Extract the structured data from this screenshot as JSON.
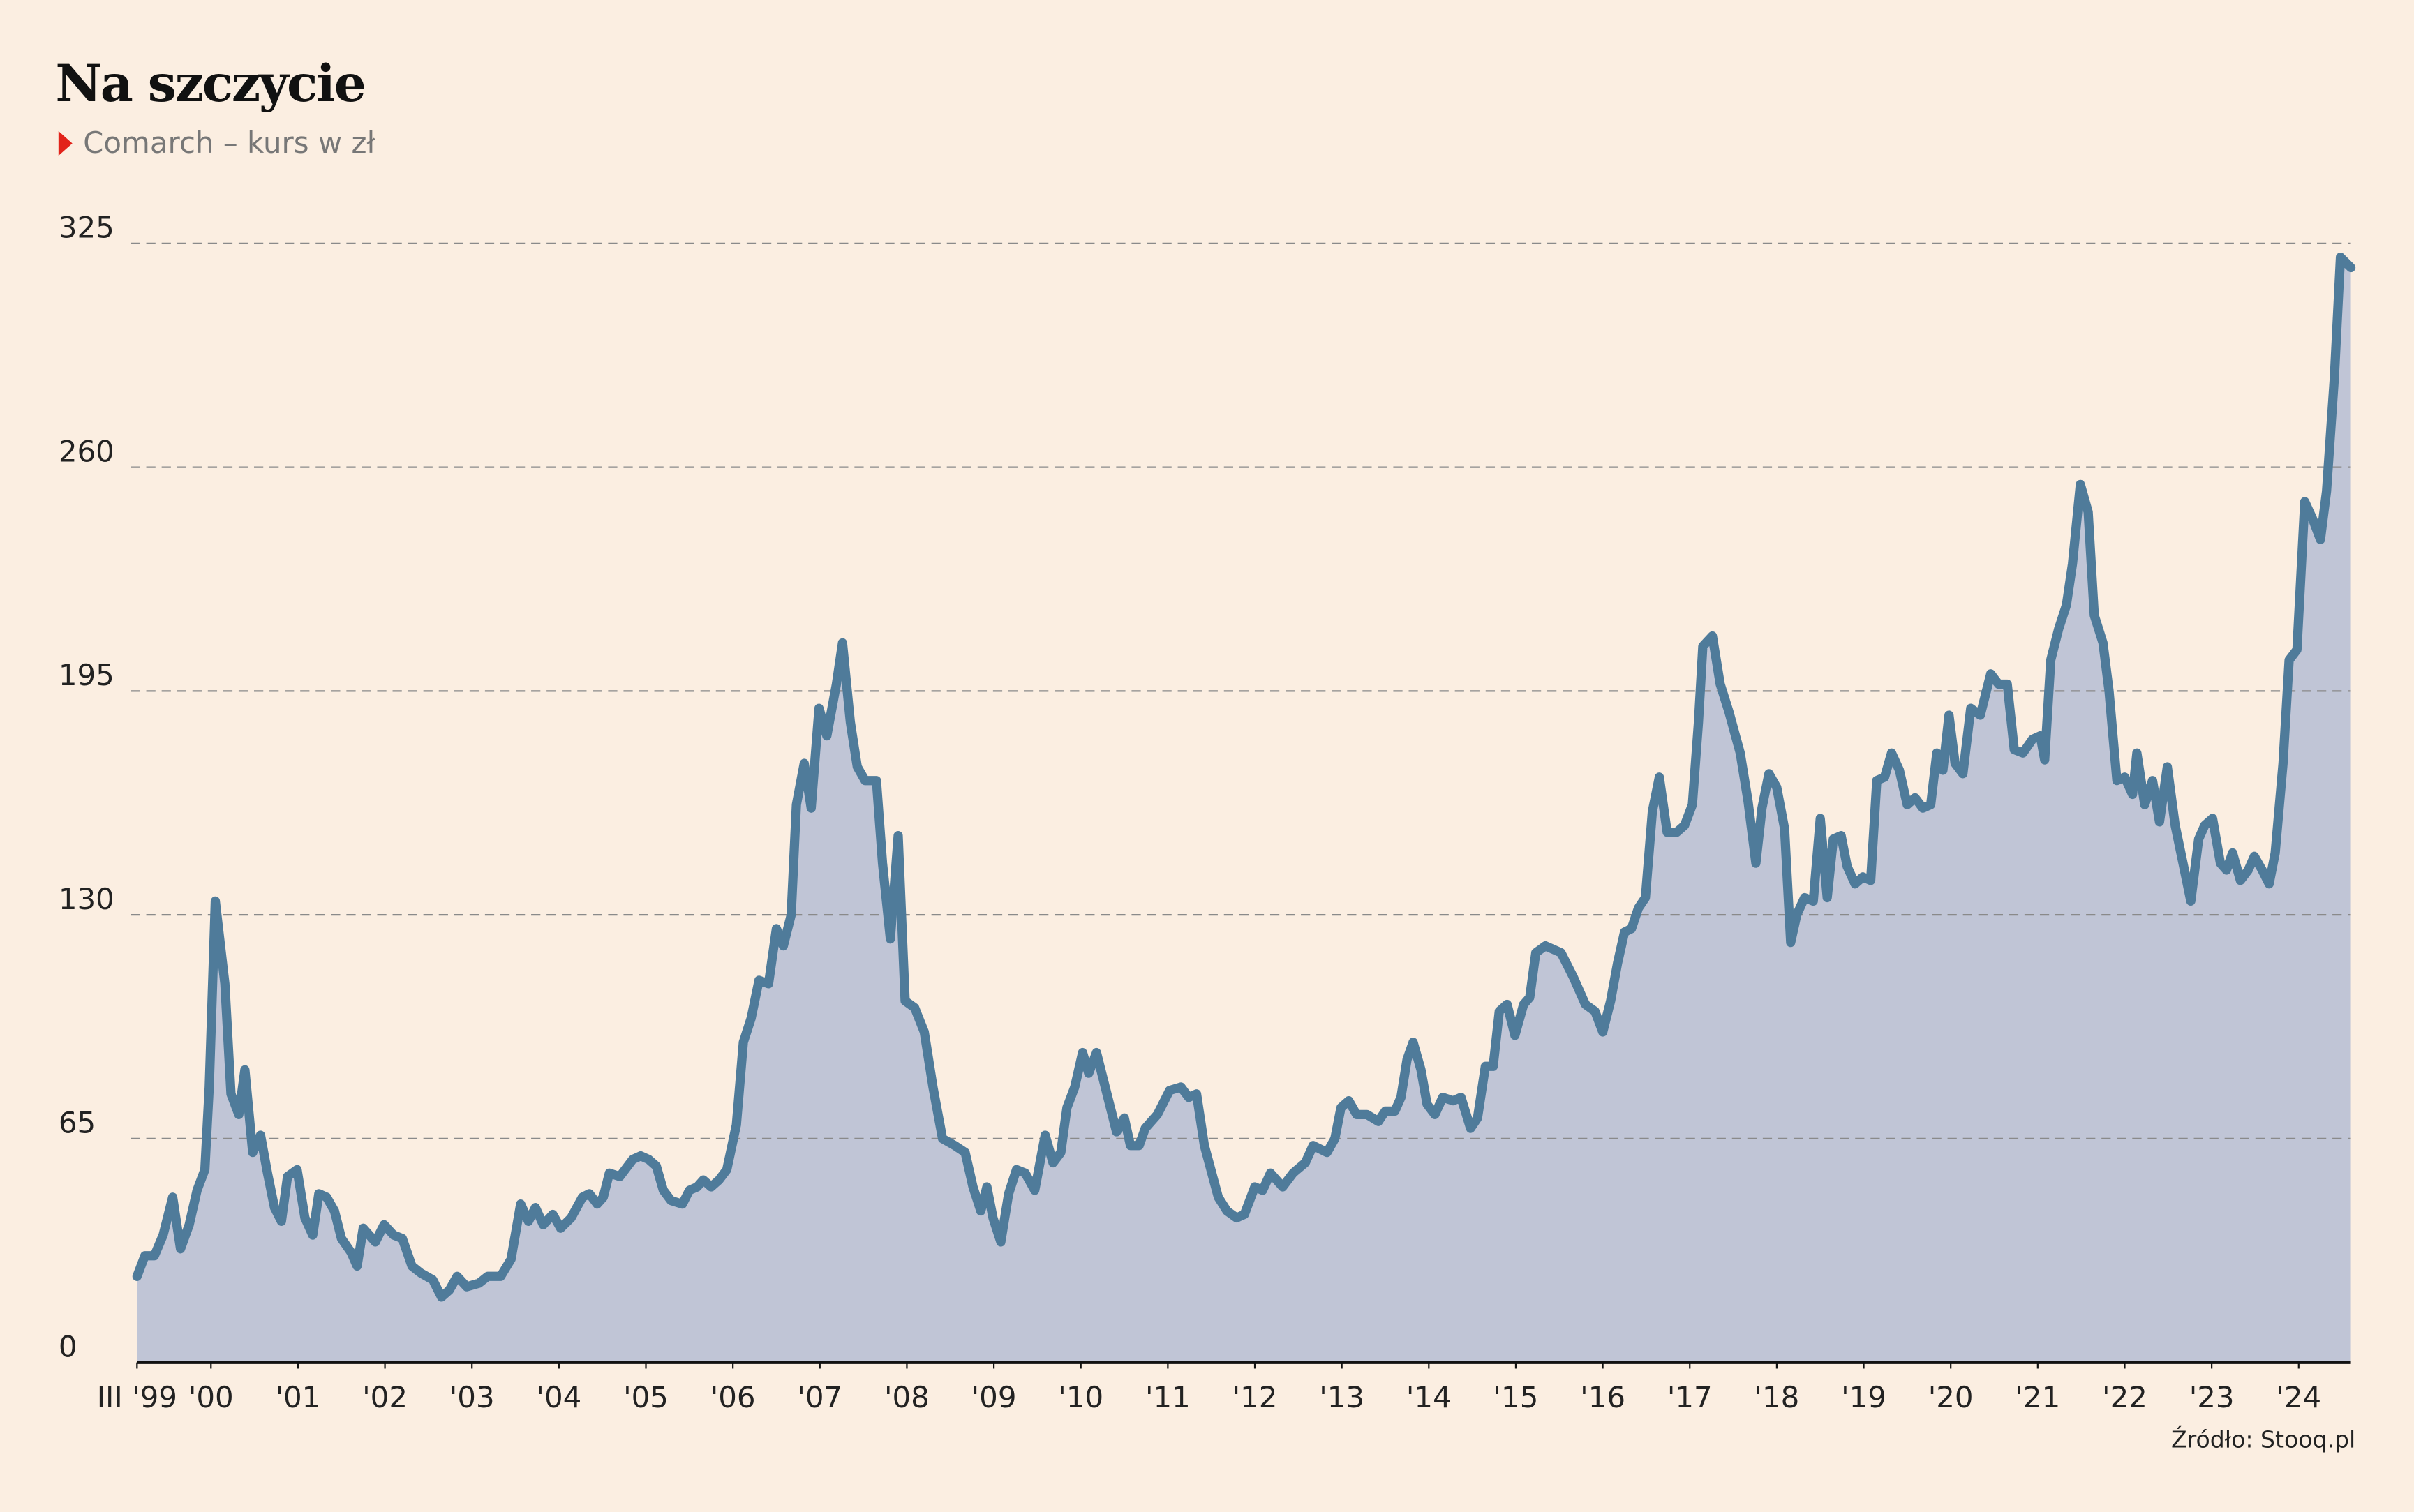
{
  "chart_data": {
    "type": "area",
    "title": "Na szczycie",
    "subtitle": "Comarch – kurs w zł",
    "source": "Źródło: Stooq.pl",
    "color": "#4f7b9a",
    "fill_color": "#c0c5d6",
    "grid": true,
    "xlim": [
      1999.15,
      2024.6
    ],
    "ylim": [
      0,
      325
    ],
    "yticks": [
      0,
      65,
      130,
      195,
      260,
      325
    ],
    "xticks": [
      {
        "value": 1999.15,
        "label": "III '99"
      },
      {
        "value": 2000,
        "label": "'00"
      },
      {
        "value": 2001,
        "label": "'01"
      },
      {
        "value": 2002,
        "label": "'02"
      },
      {
        "value": 2003,
        "label": "'03"
      },
      {
        "value": 2004,
        "label": "'04"
      },
      {
        "value": 2005,
        "label": "'05"
      },
      {
        "value": 2006,
        "label": "'06"
      },
      {
        "value": 2007,
        "label": "'07"
      },
      {
        "value": 2008,
        "label": "'08"
      },
      {
        "value": 2009,
        "label": "'09"
      },
      {
        "value": 2010,
        "label": "'10"
      },
      {
        "value": 2011,
        "label": "'11"
      },
      {
        "value": 2012,
        "label": "'12"
      },
      {
        "value": 2013,
        "label": "'13"
      },
      {
        "value": 2014,
        "label": "'14"
      },
      {
        "value": 2015,
        "label": "'15"
      },
      {
        "value": 2016,
        "label": "'16"
      },
      {
        "value": 2017,
        "label": "'17"
      },
      {
        "value": 2018,
        "label": "'18"
      },
      {
        "value": 2019,
        "label": "'19"
      },
      {
        "value": 2020,
        "label": "'20"
      },
      {
        "value": 2021,
        "label": "'21"
      },
      {
        "value": 2022,
        "label": "'22"
      },
      {
        "value": 2023,
        "label": "'23"
      },
      {
        "value": 2024,
        "label": "'24"
      }
    ],
    "x": [
      1999.15,
      1999.24,
      1999.35,
      1999.45,
      1999.56,
      1999.65,
      1999.75,
      1999.84,
      1999.93,
      1999.98,
      2000.05,
      2000.16,
      2000.23,
      2000.32,
      2000.39,
      2000.48,
      2000.57,
      2000.65,
      2000.73,
      2000.81,
      2000.88,
      2000.99,
      2001.08,
      2001.17,
      2001.24,
      2001.33,
      2001.42,
      2001.5,
      2001.61,
      2001.68,
      2001.75,
      2001.89,
      2001.99,
      2002.1,
      2002.2,
      2002.31,
      2002.41,
      2002.55,
      2002.65,
      2002.74,
      2002.83,
      2002.94,
      2003.08,
      2003.18,
      2003.33,
      2003.45,
      2003.56,
      2003.65,
      2003.73,
      2003.82,
      2003.93,
      2004.02,
      2004.14,
      2004.27,
      2004.35,
      2004.44,
      2004.51,
      2004.58,
      2004.7,
      2004.85,
      2004.94,
      2005.03,
      2005.12,
      2005.2,
      2005.29,
      2005.42,
      2005.5,
      2005.59,
      2005.66,
      2005.75,
      2005.84,
      2005.93,
      2006.04,
      2006.12,
      2006.21,
      2006.3,
      2006.41,
      2006.5,
      2006.58,
      2006.67,
      2006.73,
      2006.82,
      2006.9,
      2006.99,
      2007.08,
      2007.19,
      2007.26,
      2007.35,
      2007.43,
      2007.52,
      2007.65,
      2007.72,
      2007.81,
      2007.9,
      2007.98,
      2008.09,
      2008.2,
      2008.3,
      2008.41,
      2008.55,
      2008.67,
      2008.76,
      2008.85,
      2008.92,
      2008.99,
      2009.08,
      2009.17,
      2009.26,
      2009.36,
      2009.47,
      2009.59,
      2009.68,
      2009.77,
      2009.84,
      2009.93,
      2010.02,
      2010.09,
      2010.18,
      2010.28,
      2010.41,
      2010.5,
      2010.57,
      2010.67,
      2010.74,
      2010.88,
      2011.02,
      2011.15,
      2011.24,
      2011.33,
      2011.42,
      2011.58,
      2011.68,
      2011.79,
      2011.88,
      2012.0,
      2012.09,
      2012.18,
      2012.32,
      2012.44,
      2012.58,
      2012.67,
      2012.83,
      2012.92,
      2012.99,
      2013.08,
      2013.17,
      2013.29,
      2013.42,
      2013.5,
      2013.61,
      2013.68,
      2013.75,
      2013.82,
      2013.91,
      2013.98,
      2014.07,
      2014.16,
      2014.28,
      2014.37,
      2014.48,
      2014.56,
      2014.65,
      2014.74,
      2014.81,
      2014.9,
      2014.99,
      2015.09,
      2015.16,
      2015.23,
      2015.34,
      2015.52,
      2015.66,
      2015.8,
      2015.91,
      2016.0,
      2016.09,
      2016.17,
      2016.25,
      2016.33,
      2016.41,
      2016.49,
      2016.57,
      2016.65,
      2016.74,
      2016.85,
      2016.94,
      2017.03,
      2017.1,
      2017.15,
      2017.26,
      2017.35,
      2017.45,
      2017.58,
      2017.67,
      2017.76,
      2017.83,
      2017.91,
      2018.0,
      2018.09,
      2018.16,
      2018.23,
      2018.32,
      2018.42,
      2018.5,
      2018.58,
      2018.65,
      2018.74,
      2018.81,
      2018.9,
      2018.99,
      2019.08,
      2019.15,
      2019.24,
      2019.32,
      2019.41,
      2019.5,
      2019.59,
      2019.68,
      2019.77,
      2019.84,
      2019.91,
      2019.98,
      2020.05,
      2020.14,
      2020.23,
      2020.34,
      2020.46,
      2020.55,
      2020.65,
      2020.73,
      2020.83,
      2020.94,
      2021.03,
      2021.08,
      2021.15,
      2021.24,
      2021.33,
      2021.4,
      2021.49,
      2021.58,
      2021.65,
      2021.75,
      2021.82,
      2021.91,
      2022.0,
      2022.09,
      2022.14,
      2022.23,
      2022.32,
      2022.4,
      2022.49,
      2022.58,
      2022.67,
      2022.76,
      2022.85,
      2022.92,
      2023.01,
      2023.1,
      2023.17,
      2023.24,
      2023.33,
      2023.42,
      2023.49,
      2023.58,
      2023.66,
      2023.73,
      2023.82,
      2023.89,
      2023.98,
      2024.07,
      2024.16,
      2024.25,
      2024.32,
      2024.41,
      2024.48,
      2024.6
    ],
    "values": [
      25,
      31,
      31,
      37,
      48,
      33,
      40,
      50,
      56,
      80,
      134,
      110,
      78,
      72,
      85,
      61,
      66,
      55,
      45,
      41,
      54,
      56,
      42,
      37,
      49,
      48,
      44,
      36,
      32,
      28,
      39,
      35,
      40,
      37,
      36,
      28,
      26,
      24,
      19,
      21,
      25,
      22,
      23,
      25,
      25,
      30,
      46,
      41,
      45,
      40,
      43,
      39,
      42,
      48,
      49,
      46,
      48,
      55,
      54,
      59,
      60,
      59,
      57,
      50,
      47,
      46,
      50,
      51,
      53,
      51,
      53,
      56,
      69,
      93,
      100,
      111,
      110,
      126,
      121,
      130,
      162,
      174,
      161,
      190,
      182,
      197,
      209,
      186,
      173,
      169,
      169,
      145,
      123,
      153,
      105,
      103,
      96,
      80,
      65,
      63,
      61,
      51,
      44,
      51,
      42,
      35,
      49,
      56,
      55,
      50,
      66,
      58,
      61,
      74,
      80,
      90,
      84,
      90,
      80,
      67,
      71,
      63,
      63,
      68,
      72,
      79,
      80,
      77,
      78,
      63,
      48,
      44,
      42,
      43,
      51,
      50,
      55,
      51,
      55,
      58,
      63,
      61,
      65,
      74,
      76,
      72,
      72,
      70,
      73,
      73,
      77,
      88,
      93,
      85,
      75,
      72,
      77,
      76,
      77,
      68,
      71,
      86,
      86,
      102,
      104,
      95,
      104,
      106,
      119,
      121,
      119,
      112,
      104,
      102,
      96,
      105,
      116,
      125,
      126,
      132,
      135,
      160,
      170,
      154,
      154,
      156,
      162,
      186,
      208,
      211,
      197,
      189,
      177,
      163,
      145,
      161,
      171,
      167,
      155,
      122,
      130,
      135,
      134,
      158,
      135,
      152,
      153,
      144,
      139,
      141,
      140,
      169,
      170,
      177,
      172,
      162,
      164,
      161,
      162,
      177,
      172,
      188,
      174,
      171,
      190,
      188,
      200,
      197,
      197,
      178,
      177,
      181,
      182,
      175,
      204,
      213,
      220,
      232,
      255,
      247,
      217,
      209,
      195,
      169,
      170,
      165,
      177,
      162,
      169,
      157,
      173,
      156,
      145,
      134,
      152,
      156,
      158,
      145,
      143,
      148,
      140,
      143,
      147,
      143,
      139,
      148,
      174,
      204,
      207,
      250,
      245,
      239,
      253,
      286,
      321,
      318
    ]
  }
}
